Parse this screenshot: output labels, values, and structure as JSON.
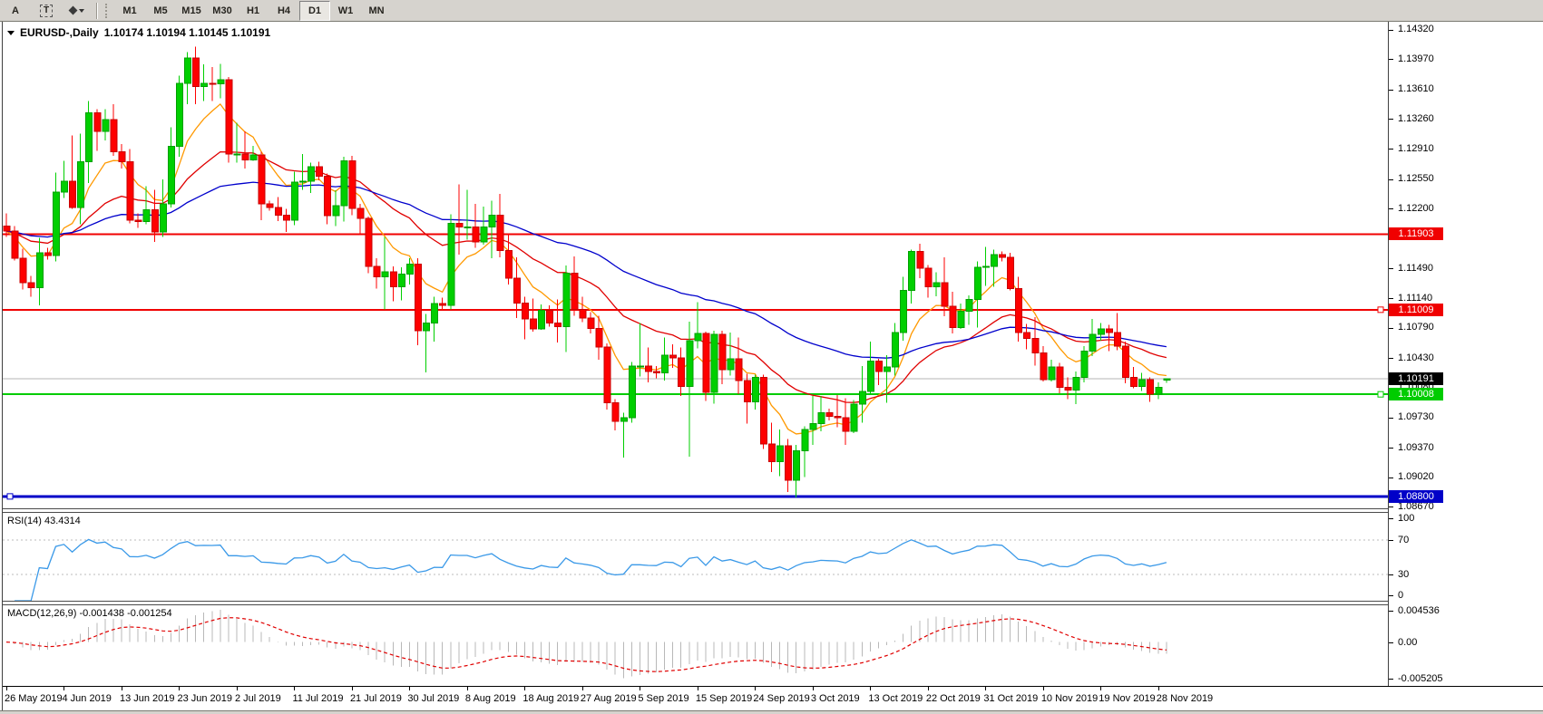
{
  "toolbar": {
    "buttons": [
      {
        "label": "A",
        "name": "cursor-tool-button"
      },
      {
        "label": "T",
        "name": "text-tool-button"
      },
      {
        "label": "",
        "name": "objects-dropdown-button"
      }
    ],
    "timeframes": [
      "M1",
      "M5",
      "M15",
      "M30",
      "H1",
      "H4",
      "D1",
      "W1",
      "MN"
    ],
    "active_timeframe": "D1"
  },
  "chart": {
    "symbol_period": "EURUSD-,Daily",
    "ohlc_text": "1.10174 1.10194 1.10145 1.10191"
  },
  "price_axis": {
    "ticks": [
      "1.14320",
      "1.13970",
      "1.13610",
      "1.13260",
      "1.12910",
      "1.12550",
      "1.12200",
      "1.11850",
      "1.11490",
      "1.11140",
      "1.10790",
      "1.10430",
      "1.10080",
      "1.09730",
      "1.09370",
      "1.09020",
      "1.08670"
    ],
    "badges": [
      {
        "text": "1.11903",
        "price": 1.11903,
        "bg": "#f00000",
        "fg": "#ffffff"
      },
      {
        "text": "1.11009",
        "price": 1.11009,
        "bg": "#f00000",
        "fg": "#ffffff"
      },
      {
        "text": "1.10191",
        "price": 1.10191,
        "bg": "#000000",
        "fg": "#ffffff"
      },
      {
        "text": "1.10008",
        "price": 1.10008,
        "bg": "#00cc00",
        "fg": "#ffffff"
      },
      {
        "text": "1.08800",
        "price": 1.088,
        "bg": "#0000c8",
        "fg": "#ffffff"
      }
    ]
  },
  "indicators": {
    "rsi": {
      "label": "RSI(14) 43.4314",
      "period": 14,
      "value": 43.4314,
      "color": "#3a99e8",
      "levels": [
        70,
        30
      ],
      "axis_labels": [
        {
          "text": "100",
          "value": 100
        },
        {
          "text": "70",
          "value": 70
        },
        {
          "text": "30",
          "value": 30
        },
        {
          "text": "0",
          "value": 0
        }
      ]
    },
    "macd": {
      "label": "MACD(12,26,9) -0.001438 -0.001254",
      "macd_value": -0.001438,
      "signal_value": -0.001254,
      "hist_color": "#b8b8b8",
      "signal_color": "#e00000",
      "axis_labels": [
        {
          "text": "0.004536",
          "value": 0.004536
        },
        {
          "text": "0.00",
          "value": 0
        },
        {
          "text": "-0.005205",
          "value": -0.005205
        }
      ],
      "range": [
        -0.005205,
        0.004536
      ]
    }
  },
  "time_axis": {
    "labels": [
      "26 May 2019",
      "4 Jun 2019",
      "13 Jun 2019",
      "23 Jun 2019",
      "2 Jul 2019",
      "11 Jul 2019",
      "21 Jul 2019",
      "30 Jul 2019",
      "8 Aug 2019",
      "18 Aug 2019",
      "27 Aug 2019",
      "5 Sep 2019",
      "15 Sep 2019",
      "24 Sep 2019",
      "3 Oct 2019",
      "13 Oct 2019",
      "22 Oct 2019",
      "31 Oct 2019",
      "10 Nov 2019",
      "19 Nov 2019",
      "28 Nov 2019"
    ]
  },
  "chart_data": {
    "type": "candlestick",
    "symbol": "EURUSD-",
    "timeframe": "Daily",
    "current": {
      "open": 1.10174,
      "high": 1.10194,
      "low": 1.10145,
      "close": 1.10191
    },
    "visible_price_range": [
      1.0867,
      1.1432
    ],
    "current_price_line": {
      "value": 1.10191,
      "color": "#b4b4b4"
    },
    "hlines": [
      {
        "price": 1.11903,
        "color": "#f00000",
        "width": 2,
        "handle": "none"
      },
      {
        "price": 1.11009,
        "color": "#f00000",
        "width": 2,
        "handle": "right"
      },
      {
        "price": 1.10008,
        "color": "#00cc00",
        "width": 2,
        "handle": "right"
      },
      {
        "price": 1.088,
        "color": "#0000c8",
        "width": 3,
        "handle": "left"
      }
    ],
    "overlays": [
      {
        "name": "ma-fast",
        "type": "ema",
        "period": 8,
        "color": "#ff9900"
      },
      {
        "name": "ma-medium",
        "type": "ema",
        "period": 24,
        "color": "#e00000"
      },
      {
        "name": "ma-slow",
        "type": "ema",
        "period": 55,
        "color": "#0000cc"
      }
    ],
    "bull_color": "#00cf00",
    "bull_border": "#00a000",
    "bear_color": "#fe0000",
    "bear_border": "#c80000",
    "candles": [
      [
        1.12,
        1.1215,
        1.1187,
        1.1194
      ],
      [
        1.1194,
        1.12,
        1.1159,
        1.1162
      ],
      [
        1.1162,
        1.1173,
        1.1125,
        1.1133
      ],
      [
        1.1133,
        1.1141,
        1.1116,
        1.1127
      ],
      [
        1.1127,
        1.1186,
        1.1106,
        1.1168
      ],
      [
        1.1168,
        1.1174,
        1.116,
        1.1165
      ],
      [
        1.1165,
        1.1263,
        1.1158,
        1.124
      ],
      [
        1.124,
        1.1277,
        1.1233,
        1.1253
      ],
      [
        1.1253,
        1.1307,
        1.122,
        1.1222
      ],
      [
        1.1222,
        1.1309,
        1.1202,
        1.1276
      ],
      [
        1.1276,
        1.1348,
        1.1251,
        1.1334
      ],
      [
        1.1334,
        1.1338,
        1.1289,
        1.1312
      ],
      [
        1.1312,
        1.1338,
        1.1301,
        1.1326
      ],
      [
        1.1326,
        1.1344,
        1.1283,
        1.1288
      ],
      [
        1.1288,
        1.1297,
        1.1268,
        1.1276
      ],
      [
        1.1276,
        1.1291,
        1.1203,
        1.1207
      ],
      [
        1.1207,
        1.1215,
        1.1198,
        1.1205
      ],
      [
        1.1205,
        1.1247,
        1.1202,
        1.1219
      ],
      [
        1.1219,
        1.1243,
        1.1181,
        1.1193
      ],
      [
        1.1193,
        1.1255,
        1.1187,
        1.1226
      ],
      [
        1.1226,
        1.1317,
        1.1222,
        1.1294
      ],
      [
        1.1294,
        1.1378,
        1.1282,
        1.1369
      ],
      [
        1.1369,
        1.1406,
        1.1344,
        1.1399
      ],
      [
        1.1399,
        1.1412,
        1.1344,
        1.1365
      ],
      [
        1.1365,
        1.1391,
        1.1348,
        1.1369
      ],
      [
        1.1369,
        1.1388,
        1.1348,
        1.1368
      ],
      [
        1.1368,
        1.1392,
        1.1351,
        1.1373
      ],
      [
        1.1373,
        1.1376,
        1.1275,
        1.1285
      ],
      [
        1.1285,
        1.1322,
        1.1275,
        1.1285
      ],
      [
        1.1285,
        1.1312,
        1.1268,
        1.1278
      ],
      [
        1.1278,
        1.1295,
        1.1277,
        1.1284
      ],
      [
        1.1284,
        1.1288,
        1.1207,
        1.1226
      ],
      [
        1.1226,
        1.123,
        1.1218,
        1.1222
      ],
      [
        1.1222,
        1.1234,
        1.1206,
        1.1213
      ],
      [
        1.1213,
        1.122,
        1.1193,
        1.1207
      ],
      [
        1.1207,
        1.1264,
        1.1201,
        1.1252
      ],
      [
        1.1252,
        1.1285,
        1.1243,
        1.1253
      ],
      [
        1.1253,
        1.1275,
        1.1239,
        1.127
      ],
      [
        1.127,
        1.1276,
        1.1254,
        1.1259
      ],
      [
        1.1259,
        1.1262,
        1.1202,
        1.1212
      ],
      [
        1.1212,
        1.1242,
        1.12,
        1.1224
      ],
      [
        1.1224,
        1.1282,
        1.1205,
        1.1277
      ],
      [
        1.1277,
        1.1283,
        1.1213,
        1.1221
      ],
      [
        1.1221,
        1.1226,
        1.119,
        1.1209
      ],
      [
        1.1209,
        1.1211,
        1.1144,
        1.1152
      ],
      [
        1.1152,
        1.1162,
        1.1126,
        1.114
      ],
      [
        1.114,
        1.1187,
        1.1101,
        1.1146
      ],
      [
        1.1146,
        1.1152,
        1.1111,
        1.1128
      ],
      [
        1.1128,
        1.1151,
        1.1112,
        1.1143
      ],
      [
        1.1143,
        1.1162,
        1.1131,
        1.1155
      ],
      [
        1.1155,
        1.1162,
        1.1059,
        1.1076
      ],
      [
        1.1076,
        1.1096,
        1.1027,
        1.1085
      ],
      [
        1.1085,
        1.1116,
        1.1063,
        1.1108
      ],
      [
        1.1108,
        1.1115,
        1.11,
        1.1106
      ],
      [
        1.1106,
        1.1214,
        1.1101,
        1.1203
      ],
      [
        1.1203,
        1.1249,
        1.1166,
        1.1199
      ],
      [
        1.1199,
        1.1243,
        1.1184,
        1.1199
      ],
      [
        1.1199,
        1.1226,
        1.1174,
        1.1181
      ],
      [
        1.1181,
        1.1223,
        1.1178,
        1.1199
      ],
      [
        1.1199,
        1.123,
        1.1162,
        1.1213
      ],
      [
        1.1213,
        1.1238,
        1.1163,
        1.1171
      ],
      [
        1.1171,
        1.1191,
        1.1131,
        1.1138
      ],
      [
        1.1138,
        1.1163,
        1.1091,
        1.1109
      ],
      [
        1.1109,
        1.1116,
        1.1066,
        1.109
      ],
      [
        1.109,
        1.1114,
        1.1075,
        1.1078
      ],
      [
        1.1078,
        1.1107,
        1.1077,
        1.11
      ],
      [
        1.11,
        1.1106,
        1.1081,
        1.1085
      ],
      [
        1.1085,
        1.1113,
        1.1062,
        1.1081
      ],
      [
        1.1081,
        1.1153,
        1.1051,
        1.1144
      ],
      [
        1.1144,
        1.1164,
        1.1094,
        1.1101
      ],
      [
        1.1101,
        1.1116,
        1.1086,
        1.1091
      ],
      [
        1.1091,
        1.1098,
        1.1073,
        1.1079
      ],
      [
        1.1079,
        1.1094,
        1.1042,
        1.1057
      ],
      [
        1.1057,
        1.1061,
        1.0983,
        1.0991
      ],
      [
        1.0991,
        1.0995,
        1.0958,
        1.0969
      ],
      [
        1.0969,
        1.0979,
        1.0926,
        1.0973
      ],
      [
        1.0973,
        1.1039,
        1.0967,
        1.1034
      ],
      [
        1.1034,
        1.1085,
        1.1022,
        1.1034
      ],
      [
        1.1034,
        1.1056,
        1.1015,
        1.1028
      ],
      [
        1.1028,
        1.1034,
        1.102,
        1.1026
      ],
      [
        1.1026,
        1.1068,
        1.1017,
        1.1047
      ],
      [
        1.1047,
        1.106,
        1.1032,
        1.1044
      ],
      [
        1.1044,
        1.1056,
        1.0999,
        1.101
      ],
      [
        1.101,
        1.1087,
        1.0927,
        1.1064
      ],
      [
        1.1064,
        1.111,
        1.1055,
        1.1073
      ],
      [
        1.1073,
        1.1075,
        1.0993,
        1.1003
      ],
      [
        1.1003,
        1.1076,
        1.099,
        1.1072
      ],
      [
        1.1072,
        1.1076,
        1.1013,
        1.103
      ],
      [
        1.103,
        1.1074,
        1.1023,
        1.1043
      ],
      [
        1.1043,
        1.1068,
        1.1001,
        1.1017
      ],
      [
        1.1017,
        1.1025,
        1.0966,
        1.0992
      ],
      [
        1.0992,
        1.1024,
        1.0983,
        1.1021
      ],
      [
        1.1021,
        1.1024,
        1.0936,
        1.0942
      ],
      [
        1.0942,
        1.0967,
        1.0909,
        1.0921
      ],
      [
        1.0921,
        1.0959,
        1.0904,
        1.094
      ],
      [
        1.094,
        1.0948,
        1.0885,
        1.0899
      ],
      [
        1.0899,
        1.0941,
        1.0879,
        1.0934
      ],
      [
        1.0934,
        1.0963,
        1.0903,
        1.0959
      ],
      [
        1.0959,
        1.0999,
        1.0941,
        1.0966
      ],
      [
        1.0966,
        1.0999,
        1.0957,
        1.0979
      ],
      [
        1.0979,
        1.0984,
        1.097,
        1.0975
      ],
      [
        1.0975,
        1.1,
        1.0962,
        1.0973
      ],
      [
        1.0973,
        1.0996,
        1.0941,
        1.0957
      ],
      [
        1.0957,
        1.0994,
        1.0955,
        1.0989
      ],
      [
        1.0989,
        1.1034,
        1.0967,
        1.1004
      ],
      [
        1.1004,
        1.1063,
        1.1002,
        1.104
      ],
      [
        1.104,
        1.1043,
        1.1012,
        1.1028
      ],
      [
        1.1028,
        1.1047,
        1.0991,
        1.1033
      ],
      [
        1.1033,
        1.1085,
        1.1023,
        1.1074
      ],
      [
        1.1074,
        1.114,
        1.1064,
        1.1124
      ],
      [
        1.1124,
        1.1172,
        1.1108,
        1.117
      ],
      [
        1.117,
        1.1179,
        1.1138,
        1.115
      ],
      [
        1.115,
        1.1154,
        1.1115,
        1.1128
      ],
      [
        1.1128,
        1.1145,
        1.1117,
        1.1133
      ],
      [
        1.1133,
        1.1163,
        1.1093,
        1.1105
      ],
      [
        1.1105,
        1.1122,
        1.1073,
        1.108
      ],
      [
        1.108,
        1.1108,
        1.1078,
        1.1099
      ],
      [
        1.1099,
        1.1118,
        1.1083,
        1.1113
      ],
      [
        1.1113,
        1.1158,
        1.108,
        1.1151
      ],
      [
        1.1151,
        1.1175,
        1.1129,
        1.1152
      ],
      [
        1.1152,
        1.1172,
        1.1128,
        1.1166
      ],
      [
        1.1166,
        1.117,
        1.1158,
        1.1163
      ],
      [
        1.1163,
        1.1168,
        1.1124,
        1.1126
      ],
      [
        1.1126,
        1.114,
        1.1063,
        1.1074
      ],
      [
        1.1074,
        1.1084,
        1.1054,
        1.1067
      ],
      [
        1.1067,
        1.1092,
        1.1035,
        1.105
      ],
      [
        1.105,
        1.1058,
        1.1016,
        1.1018
      ],
      [
        1.1018,
        1.1042,
        1.1016,
        1.1033
      ],
      [
        1.1033,
        1.1038,
        1.1002,
        1.1009
      ],
      [
        1.1009,
        1.1021,
        1.0995,
        1.1006
      ],
      [
        1.1006,
        1.1028,
        1.0989,
        1.1021
      ],
      [
        1.1021,
        1.1058,
        1.1015,
        1.1052
      ],
      [
        1.1052,
        1.109,
        1.1046,
        1.1072
      ],
      [
        1.1072,
        1.1085,
        1.1064,
        1.1078
      ],
      [
        1.1078,
        1.1083,
        1.1052,
        1.1074
      ],
      [
        1.1074,
        1.1097,
        1.1053,
        1.1058
      ],
      [
        1.1058,
        1.1063,
        1.1014,
        1.1021
      ],
      [
        1.1021,
        1.1033,
        1.1008,
        1.101
      ],
      [
        1.101,
        1.1026,
        1.1005,
        1.1018
      ],
      [
        1.1018,
        1.1021,
        1.0992,
        1.1001
      ],
      [
        1.1001,
        1.1015,
        1.0995,
        1.1009
      ],
      [
        1.10174,
        1.10194,
        1.10145,
        1.10191
      ]
    ]
  }
}
